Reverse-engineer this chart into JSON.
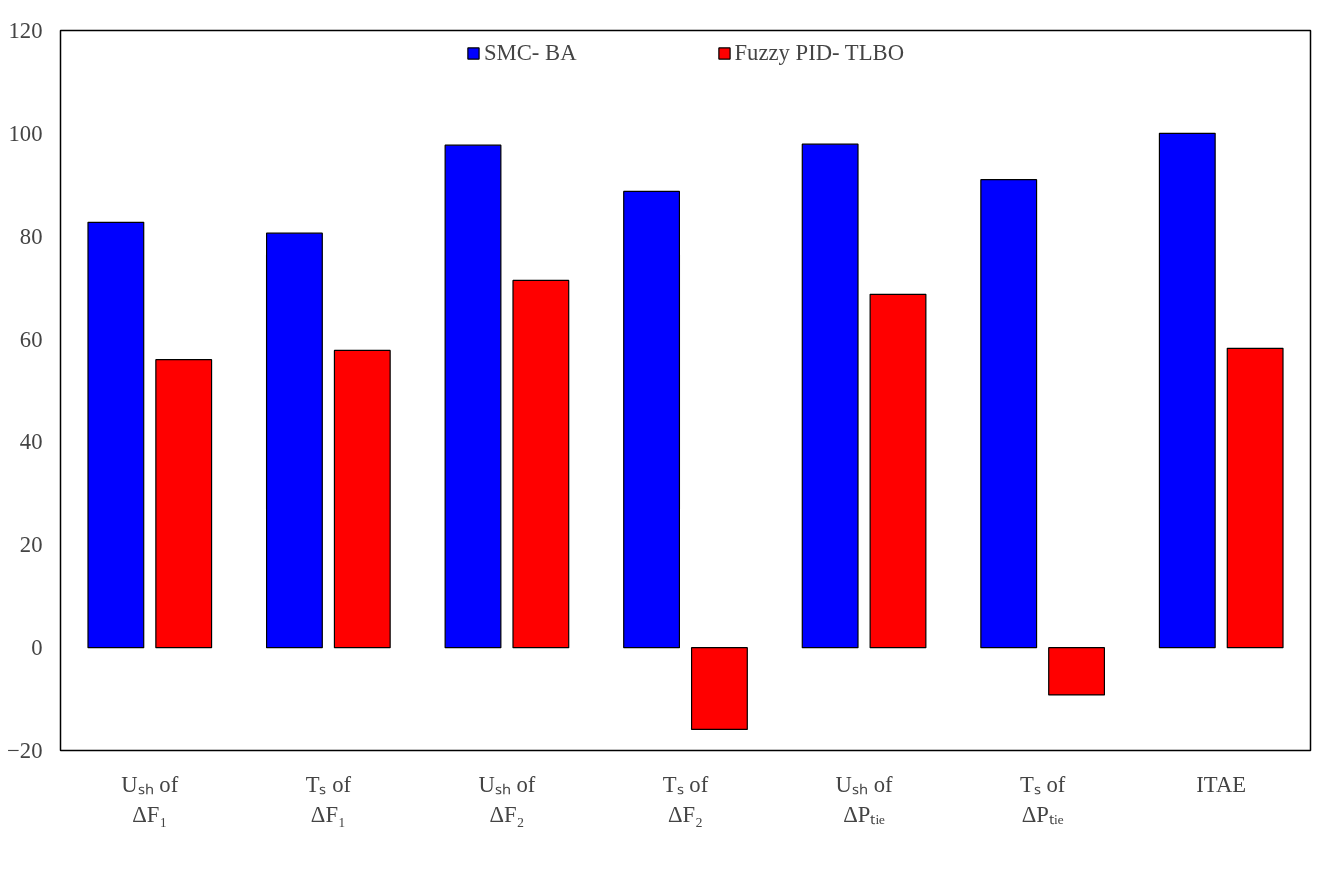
{
  "chart_data": {
    "type": "bar",
    "categories": [
      "Uₛₕ of\nΔF₁",
      "Tₛ of\nΔF₁",
      "Uₛₕ of\nΔF₂",
      "Tₛ of\nΔF₂",
      "Uₛₕ of\nΔPₜᵢₑ",
      "Tₛ of\nΔPₜᵢₑ",
      "ITAE"
    ],
    "series": [
      {
        "name": "SMC- BA",
        "color": "#0000ff",
        "values": [
          82.7,
          80.6,
          97.7,
          88.7,
          97.9,
          91.0,
          100
        ]
      },
      {
        "name": "Fuzzy PID- TLBO",
        "color": "#ff0000",
        "values": [
          56.0,
          57.8,
          71.4,
          -15.9,
          68.7,
          -9.2,
          58.2
        ]
      }
    ],
    "ylim": [
      -20,
      120
    ],
    "yticks": [
      -20,
      0,
      20,
      40,
      60,
      80,
      100,
      120
    ],
    "grid": false,
    "legend": "top"
  }
}
